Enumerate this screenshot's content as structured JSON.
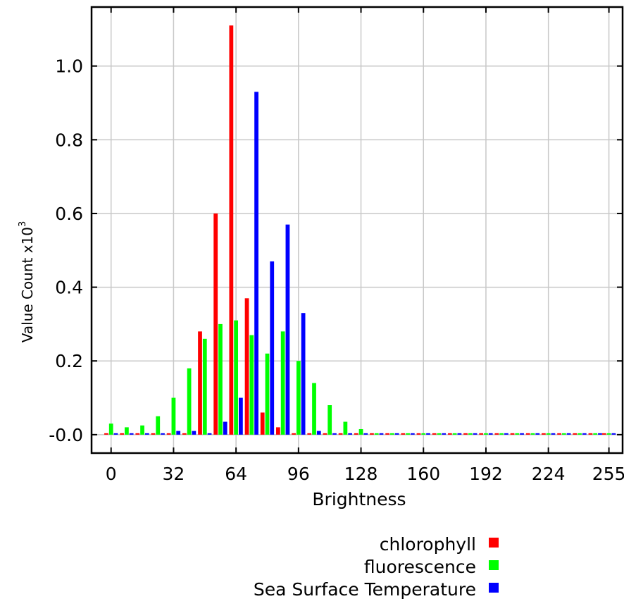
{
  "chart_data": {
    "type": "bar",
    "title": "",
    "xlabel": "Brightness",
    "ylabel": "Value Count x10",
    "ylabel_exponent": "3",
    "xlim": [
      -10,
      262
    ],
    "ylim": [
      -0.05,
      1.16
    ],
    "x_ticks": [
      0,
      32,
      64,
      96,
      128,
      160,
      192,
      224,
      255
    ],
    "y_ticks": [
      {
        "value": 0.0,
        "label": "-0.0"
      },
      {
        "value": 0.2,
        "label": "0.2"
      },
      {
        "value": 0.4,
        "label": "0.4"
      },
      {
        "value": 0.6,
        "label": "0.6"
      },
      {
        "value": 0.8,
        "label": "0.8"
      },
      {
        "value": 1.0,
        "label": "1.0"
      }
    ],
    "grid": true,
    "legend_position": "bottom-right",
    "bin_centers": [
      0,
      8,
      16,
      24,
      32,
      40,
      48,
      56,
      64,
      72,
      80,
      88,
      96,
      104,
      112,
      120,
      128,
      136,
      144,
      152,
      160,
      168,
      176,
      184,
      192,
      200,
      208,
      216,
      224,
      232,
      240,
      248,
      255
    ],
    "series": [
      {
        "name": "chlorophyll",
        "color": "#ff0000",
        "values": [
          0,
          0,
          0,
          0,
          0,
          0,
          0.28,
          0.6,
          1.11,
          0.37,
          0.06,
          0.02,
          0,
          0,
          0,
          0,
          0,
          0,
          0,
          0,
          0,
          0,
          0,
          0,
          0,
          0,
          0,
          0,
          0,
          0,
          0,
          0,
          0
        ]
      },
      {
        "name": "fluorescence",
        "color": "#00ff00",
        "values": [
          0.03,
          0.02,
          0.025,
          0.05,
          0.1,
          0.18,
          0.26,
          0.3,
          0.31,
          0.27,
          0.22,
          0.28,
          0.2,
          0.14,
          0.08,
          0.035,
          0.015,
          0,
          0,
          0,
          0,
          0,
          0,
          0,
          0,
          0,
          0,
          0,
          0,
          0,
          0,
          0,
          0
        ]
      },
      {
        "name": "Sea Surface Temperature",
        "color": "#0000ff",
        "values": [
          0,
          0,
          0,
          0,
          0.01,
          0.01,
          0,
          0.035,
          0.1,
          0.93,
          0.47,
          0.57,
          0.33,
          0.01,
          0,
          0,
          0,
          0,
          0,
          0,
          0,
          0,
          0,
          0,
          0,
          0,
          0,
          0,
          0,
          0,
          0,
          0,
          0
        ]
      }
    ]
  }
}
